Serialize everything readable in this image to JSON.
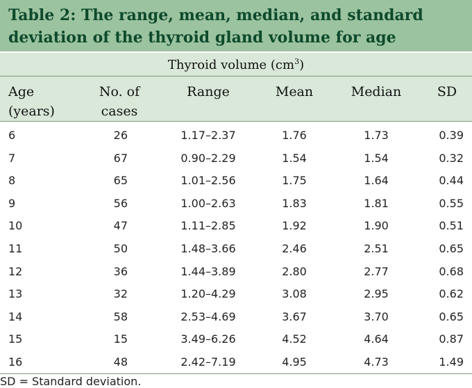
{
  "title": {
    "line1": "Table 2: The range, mean, median, and standard",
    "line2": "deviation of the thyroid gland volume for age"
  },
  "subheader": {
    "text": "Thyroid volume (cm",
    "superscript": "3",
    "close": ")"
  },
  "columns": {
    "age": {
      "line1": "Age",
      "line2": "(years)"
    },
    "no_cases": {
      "line1": "No. of",
      "line2": "cases"
    },
    "range": "Range",
    "mean": "Mean",
    "median": "Median",
    "sd": "SD"
  },
  "rows": [
    {
      "age": "6",
      "n": "26",
      "range": "1.17–2.37",
      "mean": "1.76",
      "median": "1.73",
      "sd": "0.39"
    },
    {
      "age": "7",
      "n": "67",
      "range": "0.90–2.29",
      "mean": "1.54",
      "median": "1.54",
      "sd": "0.32"
    },
    {
      "age": "8",
      "n": "65",
      "range": "1.01–2.56",
      "mean": "1.75",
      "median": "1.64",
      "sd": "0.44"
    },
    {
      "age": "9",
      "n": "56",
      "range": "1.00–2.63",
      "mean": "1.83",
      "median": "1.81",
      "sd": "0.55"
    },
    {
      "age": "10",
      "n": "47",
      "range": "1.11–2.85",
      "mean": "1.92",
      "median": "1.90",
      "sd": "0.51"
    },
    {
      "age": "11",
      "n": "50",
      "range": "1.48–3.66",
      "mean": "2.46",
      "median": "2.51",
      "sd": "0.65"
    },
    {
      "age": "12",
      "n": "36",
      "range": "1.44–3.89",
      "mean": "2.80",
      "median": "2.77",
      "sd": "0.68"
    },
    {
      "age": "13",
      "n": "32",
      "range": "1.20–4.29",
      "mean": "3.08",
      "median": "2.95",
      "sd": "0.62"
    },
    {
      "age": "14",
      "n": "58",
      "range": "2.53–4.69",
      "mean": "3.67",
      "median": "3.70",
      "sd": "0.65"
    },
    {
      "age": "15",
      "n": "15",
      "range": "3.49–6.26",
      "mean": "4.52",
      "median": "4.64",
      "sd": "0.87"
    },
    {
      "age": "16",
      "n": "48",
      "range": "2.42–7.19",
      "mean": "4.95",
      "median": "4.73",
      "sd": "1.49"
    }
  ],
  "footnote": "SD = Standard deviation.",
  "colors": {
    "title_bg": "#9cc3a0",
    "title_text": "#0d4a2c",
    "header_bg": "#d9e8d8"
  }
}
